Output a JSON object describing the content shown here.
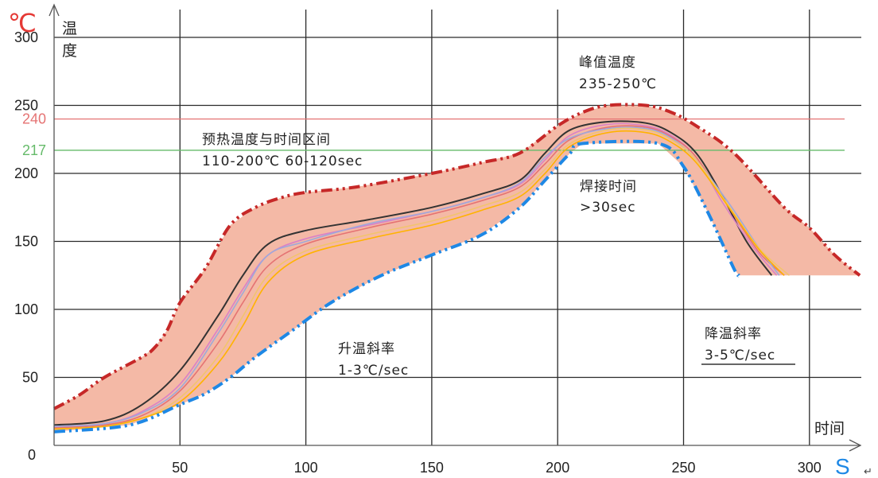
{
  "chart_data": {
    "type": "area",
    "x_unit": "S",
    "y_unit": "℃",
    "x_axis_label": "时间",
    "y_axis_label_chars": [
      "温",
      "度"
    ],
    "xlim": [
      0,
      320
    ],
    "ylim": [
      0,
      310
    ],
    "x_ticks": [
      {
        "value": 0,
        "label": "0"
      },
      {
        "value": 50,
        "label": "50"
      },
      {
        "value": 100,
        "label": "100"
      },
      {
        "value": 150,
        "label": "150"
      },
      {
        "value": 200,
        "label": "200"
      },
      {
        "value": 250,
        "label": "250"
      },
      {
        "value": 300,
        "label": "300"
      }
    ],
    "y_ticks": [
      {
        "value": 50,
        "label": "50"
      },
      {
        "value": 100,
        "label": "100"
      },
      {
        "value": 150,
        "label": "150"
      },
      {
        "value": 200,
        "label": "200"
      },
      {
        "value": 250,
        "label": "250"
      },
      {
        "value": 300,
        "label": "300"
      }
    ],
    "reference_lines": [
      {
        "value": 240,
        "label": "240",
        "color": "#e57373"
      },
      {
        "value": 217,
        "label": "217",
        "color": "#66bb6a"
      }
    ],
    "grid": true,
    "process_window": {
      "fill": "#f4b9a6",
      "upper_color": "#c62828",
      "lower_color": "#1e88e5",
      "upper": [
        [
          0,
          27
        ],
        [
          10,
          37
        ],
        [
          20,
          50
        ],
        [
          35,
          65
        ],
        [
          40,
          72
        ],
        [
          45,
          85
        ],
        [
          50,
          105
        ],
        [
          60,
          130
        ],
        [
          70,
          162
        ],
        [
          80,
          175
        ],
        [
          90,
          182
        ],
        [
          100,
          186
        ],
        [
          120,
          190
        ],
        [
          150,
          200
        ],
        [
          170,
          208
        ],
        [
          185,
          215
        ],
        [
          200,
          235
        ],
        [
          210,
          245
        ],
        [
          220,
          250
        ],
        [
          235,
          250
        ],
        [
          245,
          245
        ],
        [
          255,
          235
        ],
        [
          270,
          215
        ],
        [
          290,
          175
        ],
        [
          300,
          160
        ],
        [
          310,
          140
        ],
        [
          320,
          125
        ]
      ],
      "lower": [
        [
          0,
          10
        ],
        [
          30,
          15
        ],
        [
          50,
          30
        ],
        [
          60,
          38
        ],
        [
          70,
          50
        ],
        [
          80,
          65
        ],
        [
          95,
          85
        ],
        [
          110,
          105
        ],
        [
          130,
          125
        ],
        [
          150,
          140
        ],
        [
          170,
          155
        ],
        [
          185,
          175
        ],
        [
          195,
          195
        ],
        [
          205,
          215
        ],
        [
          210,
          222
        ],
        [
          240,
          222
        ],
        [
          250,
          205
        ],
        [
          260,
          170
        ],
        [
          270,
          130
        ],
        [
          272,
          125
        ]
      ],
      "flat_bottom": {
        "y": 125,
        "x_from": 272,
        "x_to": 320
      }
    },
    "series": [
      {
        "color": "#333333",
        "values": [
          [
            0,
            15
          ],
          [
            20,
            18
          ],
          [
            35,
            30
          ],
          [
            50,
            55
          ],
          [
            65,
            95
          ],
          [
            75,
            125
          ],
          [
            85,
            148
          ],
          [
            100,
            158
          ],
          [
            125,
            166
          ],
          [
            150,
            175
          ],
          [
            170,
            185
          ],
          [
            185,
            195
          ],
          [
            195,
            215
          ],
          [
            205,
            232
          ],
          [
            220,
            238
          ],
          [
            235,
            237
          ],
          [
            245,
            230
          ],
          [
            255,
            215
          ],
          [
            265,
            185
          ],
          [
            275,
            150
          ],
          [
            285,
            125
          ]
        ]
      },
      {
        "color": "#d981c6",
        "values": [
          [
            0,
            14
          ],
          [
            20,
            16
          ],
          [
            35,
            25
          ],
          [
            50,
            45
          ],
          [
            65,
            85
          ],
          [
            75,
            115
          ],
          [
            85,
            140
          ],
          [
            100,
            152
          ],
          [
            125,
            162
          ],
          [
            150,
            172
          ],
          [
            170,
            182
          ],
          [
            185,
            192
          ],
          [
            195,
            210
          ],
          [
            205,
            228
          ],
          [
            220,
            236
          ],
          [
            235,
            235
          ],
          [
            245,
            228
          ],
          [
            255,
            212
          ],
          [
            265,
            180
          ],
          [
            278,
            145
          ],
          [
            287,
            125
          ]
        ]
      },
      {
        "color": "#e57373",
        "values": [
          [
            0,
            13
          ],
          [
            20,
            15
          ],
          [
            35,
            22
          ],
          [
            50,
            40
          ],
          [
            65,
            75
          ],
          [
            75,
            105
          ],
          [
            85,
            132
          ],
          [
            100,
            148
          ],
          [
            125,
            160
          ],
          [
            150,
            170
          ],
          [
            170,
            180
          ],
          [
            185,
            190
          ],
          [
            195,
            207
          ],
          [
            205,
            225
          ],
          [
            220,
            234
          ],
          [
            235,
            234
          ],
          [
            245,
            227
          ],
          [
            255,
            212
          ],
          [
            268,
            175
          ],
          [
            280,
            142
          ],
          [
            290,
            125
          ]
        ]
      },
      {
        "color": "#9fa8da",
        "values": [
          [
            0,
            14
          ],
          [
            20,
            16
          ],
          [
            35,
            24
          ],
          [
            50,
            42
          ],
          [
            65,
            82
          ],
          [
            75,
            112
          ],
          [
            85,
            140
          ],
          [
            100,
            150
          ],
          [
            125,
            163
          ],
          [
            150,
            172
          ],
          [
            170,
            182
          ],
          [
            185,
            193
          ],
          [
            195,
            212
          ],
          [
            205,
            226
          ],
          [
            220,
            233
          ],
          [
            235,
            233
          ],
          [
            245,
            226
          ],
          [
            255,
            210
          ],
          [
            268,
            178
          ],
          [
            280,
            145
          ],
          [
            288,
            125
          ]
        ]
      },
      {
        "color": "#f2c46d",
        "values": [
          [
            0,
            12
          ],
          [
            20,
            14
          ],
          [
            35,
            20
          ],
          [
            50,
            35
          ],
          [
            65,
            65
          ],
          [
            75,
            95
          ],
          [
            85,
            125
          ],
          [
            100,
            143
          ],
          [
            125,
            155
          ],
          [
            150,
            165
          ],
          [
            170,
            176
          ],
          [
            185,
            186
          ],
          [
            195,
            203
          ],
          [
            205,
            222
          ],
          [
            220,
            232
          ],
          [
            235,
            232
          ],
          [
            245,
            225
          ],
          [
            255,
            210
          ],
          [
            268,
            176
          ],
          [
            280,
            145
          ],
          [
            292,
            125
          ]
        ]
      },
      {
        "color": "#ffb300",
        "values": [
          [
            0,
            12
          ],
          [
            20,
            14
          ],
          [
            35,
            20
          ],
          [
            50,
            32
          ],
          [
            65,
            60
          ],
          [
            75,
            88
          ],
          [
            85,
            120
          ],
          [
            100,
            140
          ],
          [
            125,
            152
          ],
          [
            150,
            162
          ],
          [
            170,
            173
          ],
          [
            185,
            183
          ],
          [
            195,
            200
          ],
          [
            205,
            220
          ],
          [
            220,
            230
          ],
          [
            235,
            230
          ],
          [
            245,
            223
          ],
          [
            255,
            208
          ],
          [
            268,
            175
          ],
          [
            280,
            144
          ],
          [
            290,
            125
          ]
        ]
      }
    ]
  },
  "annotations": {
    "peak": {
      "line1": "峰值温度",
      "line2": "235-250℃"
    },
    "preheat": {
      "line1": "预热温度与时间区间",
      "line2": "110-200℃ 60-120sec"
    },
    "soldering": {
      "line1": "焊接时间",
      "line2": ">30sec"
    },
    "ramp_up": {
      "line1": "升温斜率",
      "line2": "1-3℃/sec"
    },
    "ramp_down": {
      "line1": "降温斜率",
      "line2": "3-5℃/sec"
    },
    "corner_mark": "↵"
  }
}
